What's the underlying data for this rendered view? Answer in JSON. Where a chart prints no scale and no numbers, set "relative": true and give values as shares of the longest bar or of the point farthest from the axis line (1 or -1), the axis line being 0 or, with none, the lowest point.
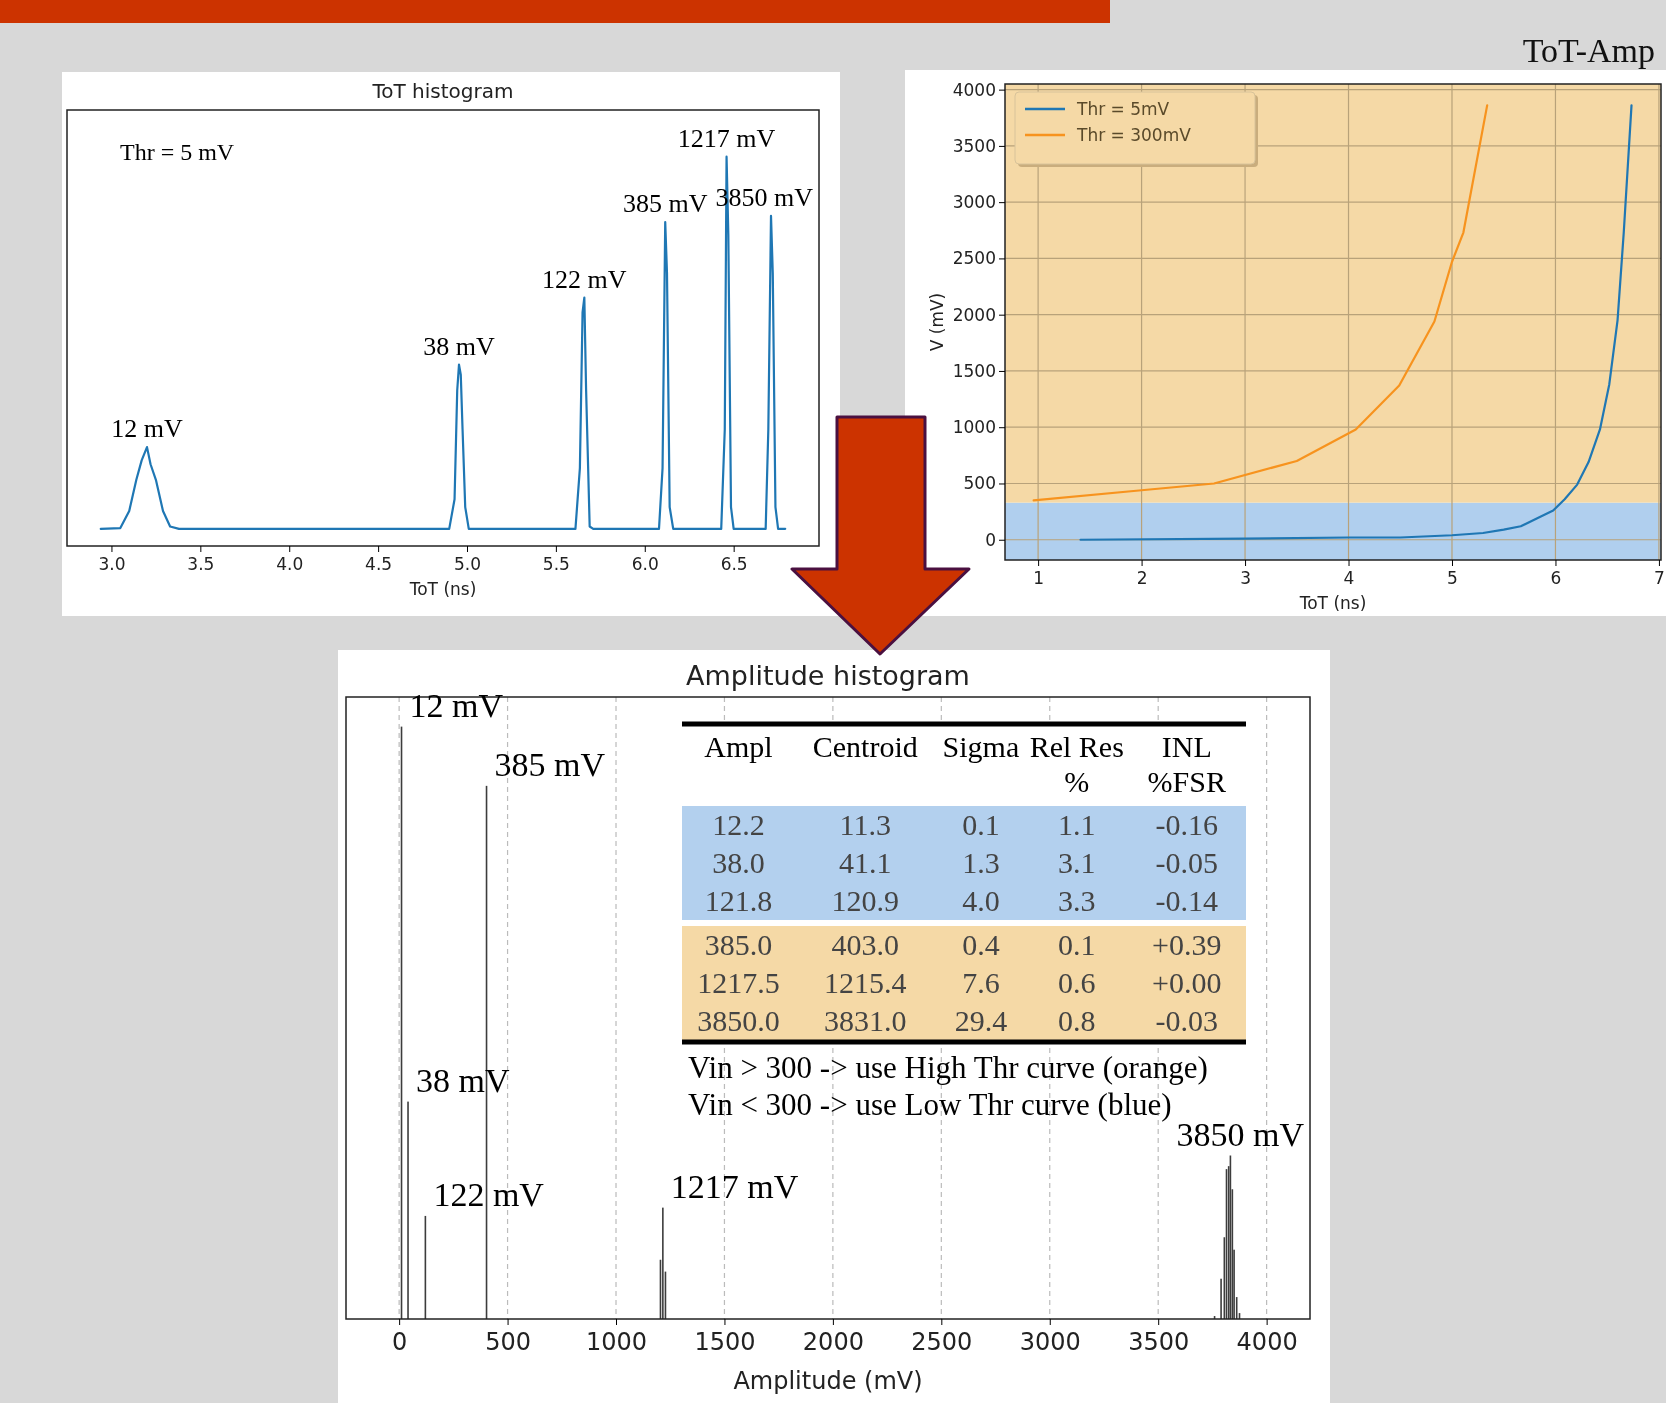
{
  "chart_data": [
    {
      "type": "line",
      "title": "ToT histogram",
      "xlabel": "ToT (ns)",
      "relative": true,
      "xlim": [
        2.75,
        6.98
      ],
      "xticks": [
        {
          "value": 3,
          "label": "3.0"
        },
        {
          "value": 3.5,
          "label": "3.5"
        },
        {
          "value": 4,
          "label": "4.0"
        },
        {
          "value": 4.5,
          "label": "4.5"
        },
        {
          "value": 5,
          "label": "5.0"
        },
        {
          "value": 5.5,
          "label": "5.5"
        },
        {
          "value": 6,
          "label": "6.0"
        },
        {
          "value": 6.5,
          "label": "6.5"
        }
      ],
      "series": [
        {
          "color": "#1f77b4",
          "x": [
            2.94,
            3.05,
            3.1,
            3.14,
            3.17,
            3.2,
            3.22,
            3.25,
            3.29,
            3.33,
            3.38,
            4.9,
            4.93,
            4.945,
            4.955,
            4.965,
            4.975,
            4.99,
            5.01,
            5.61,
            5.635,
            5.65,
            5.66,
            5.67,
            5.69,
            5.71,
            6.08,
            6.1,
            6.115,
            6.125,
            6.14,
            6.16,
            6.43,
            6.45,
            6.46,
            6.47,
            6.485,
            6.5,
            6.68,
            6.695,
            6.71,
            6.72,
            6.735,
            6.75,
            6.79
          ],
          "values": [
            0.044,
            0.046,
            0.09,
            0.17,
            0.22,
            0.254,
            0.21,
            0.17,
            0.09,
            0.05,
            0.044,
            0.044,
            0.12,
            0.4,
            0.466,
            0.44,
            0.3,
            0.1,
            0.044,
            0.044,
            0.2,
            0.6,
            0.638,
            0.4,
            0.05,
            0.044,
            0.044,
            0.2,
            0.832,
            0.7,
            0.1,
            0.044,
            0.044,
            0.3,
            1.0,
            0.8,
            0.1,
            0.044,
            0.044,
            0.3,
            0.848,
            0.7,
            0.1,
            0.044,
            0.044
          ]
        }
      ],
      "annotations": [
        "Thr = 5 mV",
        {
          "text": "12 mV",
          "x": 3.2,
          "y": 0.254
        },
        {
          "text": "38 mV",
          "x": 4.955,
          "y": 0.466
        },
        {
          "text": "122 mV",
          "x": 5.66,
          "y": 0.638
        },
        {
          "text": "385 mV",
          "x": 6.115,
          "y": 0.832
        },
        {
          "text": "1217 mV",
          "x": 6.46,
          "y": 1.0
        },
        {
          "text": "3850 mV",
          "x": 6.71,
          "y": 0.848
        }
      ]
    },
    {
      "type": "line",
      "title": "ToT-Amp",
      "xlabel": "ToT (ns)",
      "ylabel": "V (mV)",
      "xlim": [
        0.68,
        7.02
      ],
      "ylim": [
        -180,
        4050
      ],
      "xticks": [
        1,
        2,
        3,
        4,
        5,
        6,
        7
      ],
      "yticks": [
        0,
        500,
        1000,
        1500,
        2000,
        2500,
        3000,
        3500,
        4000
      ],
      "grid": true,
      "legend": "top left",
      "bands": [
        {
          "axis": "y",
          "from": -180,
          "to": 330,
          "color": "#b0cfee"
        },
        {
          "axis": "y",
          "from": 330,
          "to": 4050,
          "color": "#f5d9a6"
        }
      ],
      "series": [
        {
          "name": "Thr = 5mV",
          "color": "#1f77b4",
          "x": [
            1.41,
            3,
            4,
            4.5,
            5,
            5.3,
            5.5,
            5.665,
            5.824,
            5.978,
            6.089,
            6.21,
            6.32,
            6.43,
            6.52,
            6.6,
            6.66,
            6.735
          ],
          "values": [
            0,
            10,
            20,
            20,
            40,
            60,
            90,
            120,
            190,
            260,
            360,
            490,
            690,
            980,
            1380,
            1950,
            2730,
            3860
          ]
        },
        {
          "name": "Thr = 300mV",
          "color": "#f7931e",
          "x": [
            0.957,
            2.0,
            2.7,
            3.5,
            4.07,
            4.49,
            4.83,
            5.0,
            5.11,
            5.34
          ],
          "values": [
            350,
            440,
            500,
            700,
            980,
            1370,
            1940,
            2470,
            2730,
            3860
          ]
        }
      ]
    },
    {
      "type": "bar",
      "title": "Amplitude histogram",
      "xlabel": "Amplitude (mV)",
      "relative": true,
      "xlim": [
        -245,
        4200
      ],
      "xticks": [
        0,
        500,
        1000,
        1500,
        2000,
        2500,
        3000,
        3500,
        4000
      ],
      "grid": "x",
      "color": "#3d3d3d",
      "x": [
        11,
        41,
        121,
        403,
        1205,
        1216,
        1228,
        3760,
        3790,
        3805,
        3815,
        3825,
        3833,
        3842,
        3850,
        3862,
        3875
      ],
      "values": [
        1.0,
        0.367,
        0.174,
        0.9,
        0.1,
        0.188,
        0.08,
        0.005,
        0.068,
        0.138,
        0.253,
        0.258,
        0.276,
        0.219,
        0.117,
        0.037,
        0.01
      ],
      "annotations": [
        {
          "text": "12 mV",
          "x": 11,
          "y": 1.0
        },
        {
          "text": "385 mV",
          "x": 403,
          "y": 0.9
        },
        {
          "text": "38 mV",
          "x": 41,
          "y": 0.367
        },
        {
          "text": "122 mV",
          "x": 121,
          "y": 0.174
        },
        {
          "text": "1217 mV",
          "x": 1216,
          "y": 0.188
        },
        {
          "text": "3850 mV",
          "x": 3833,
          "y": 0.276
        }
      ]
    },
    {
      "type": "other",
      "categories": [
        "Ampl",
        "Centroid",
        "Sigma",
        "Rel Res %",
        "INL %FSR"
      ],
      "cell_labels": [
        [
          "12.2",
          "11.3",
          "0.1",
          "1.1",
          "-0.16"
        ],
        [
          "38.0",
          "41.1",
          "1.3",
          "3.1",
          "-0.05"
        ],
        [
          "121.8",
          "120.9",
          "4.0",
          "3.3",
          "-0.14"
        ],
        [
          "385.0",
          "403.0",
          "0.4",
          "0.1",
          "+0.39"
        ],
        [
          "1217.5",
          "1215.4",
          "7.6",
          "0.6",
          "+0.00"
        ],
        [
          "3850.0",
          "3831.0",
          "29.4",
          "0.8",
          "-0.03"
        ]
      ],
      "colors": [
        "#b3d0ee",
        "#b3d0ee",
        "#b3d0ee",
        "#f5d9a6",
        "#f5d9a6",
        "#f5d9a6"
      ],
      "annotations": [
        "Vin > 300 -> use High Thr curve (orange)",
        "Vin < 300 -> use Low Thr curve (blue)"
      ]
    }
  ]
}
